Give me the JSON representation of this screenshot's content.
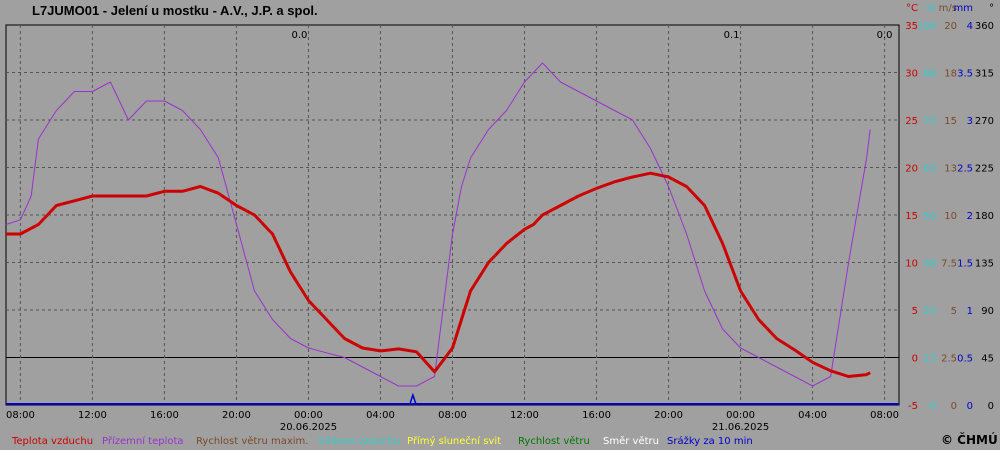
{
  "chart_data": {
    "type": "line",
    "title": "L7JUMO01 - Jelení u mostku - A.V., J.P. a spol.",
    "copyright": "© ČHMÚ",
    "x_ticks": [
      "08:00",
      "12:00",
      "16:00",
      "20:00",
      "00:00",
      "04:00",
      "08:00",
      "12:00",
      "16:00",
      "20:00",
      "00:00",
      "04:00",
      "08:00"
    ],
    "x_dates": [
      {
        "after_tick": 4,
        "label": "20.06.2025"
      },
      {
        "after_tick": 10,
        "label": "21.06.2025"
      }
    ],
    "x_range_hours": [
      -0.8,
      48.8
    ],
    "ylim": [
      -5,
      35
    ],
    "grid": true,
    "right_axes": [
      {
        "unit": "°C",
        "color": "#cc0000",
        "ticks": [
          "35",
          "30",
          "25",
          "20",
          "15",
          "10",
          "5",
          "0",
          "-5"
        ]
      },
      {
        "unit": "%",
        "color": "#33cccc",
        "ticks": [
          "100",
          "88",
          "75",
          "63",
          "50",
          "38",
          "25",
          "13",
          "0"
        ]
      },
      {
        "unit": "m/s",
        "color": "#7a4a2a",
        "ticks": [
          "20",
          "18",
          "15",
          "13",
          "10",
          "7.5",
          "5",
          "2.5",
          "0"
        ]
      },
      {
        "unit": "mm",
        "color": "#0000cc",
        "ticks": [
          "4",
          "3.5",
          "3",
          "2.5",
          "2",
          "1.5",
          "1",
          "0.5",
          "0"
        ]
      },
      {
        "unit": "°",
        "color": "#000000",
        "ticks": [
          "360",
          "315",
          "270",
          "225",
          "180",
          "135",
          "90",
          "45",
          "0"
        ]
      }
    ],
    "annotations": [
      {
        "x_hour": 15.5,
        "text": "0.0"
      },
      {
        "x_hour": 39.5,
        "text": "0.1"
      },
      {
        "x_hour": 48.0,
        "text": "0.0"
      }
    ],
    "series": [
      {
        "name": "Teplota vzduchu",
        "color": "#cc0000",
        "x": [
          -0.8,
          0,
          1,
          2,
          3,
          4,
          5,
          6,
          7,
          8,
          9,
          10,
          11,
          12,
          13,
          14,
          15,
          16,
          17,
          18,
          19,
          20,
          21,
          22,
          23,
          24,
          25,
          26,
          27,
          28,
          28.5,
          29,
          30,
          31,
          32,
          33,
          34,
          35,
          36,
          37,
          38,
          39,
          40,
          41,
          42,
          43,
          44,
          45,
          46,
          47,
          47.2
        ],
        "values": [
          13,
          13,
          14,
          16,
          16.5,
          17,
          17,
          17,
          17,
          17.5,
          17.5,
          18,
          17.3,
          16,
          15,
          13,
          9,
          6,
          4,
          2,
          1,
          0.7,
          0.9,
          0.6,
          -1.5,
          1,
          7,
          10,
          12,
          13.5,
          14,
          15,
          16,
          17,
          17.8,
          18.5,
          19,
          19.4,
          19,
          18,
          16,
          12,
          7,
          4,
          2,
          0.8,
          -0.5,
          -1.4,
          -2,
          -1.8,
          -1.6
        ]
      },
      {
        "name": "Přízemní teplota",
        "color": "#9933cc",
        "x": [
          -0.8,
          0,
          0.6,
          1,
          2,
          3,
          4,
          5,
          6,
          7,
          8,
          9,
          10,
          11,
          12,
          13,
          14,
          15,
          16,
          17,
          18,
          19,
          20,
          21,
          22,
          23,
          24,
          24.5,
          25,
          26,
          27,
          28,
          29,
          30,
          31,
          32,
          33,
          34,
          35,
          36,
          37,
          38,
          39,
          40,
          41,
          42,
          43,
          44,
          45,
          46,
          47,
          47.2
        ],
        "values": [
          14,
          14.5,
          17,
          23,
          26,
          28,
          28,
          29,
          25,
          27,
          27,
          26,
          24,
          21,
          14,
          7,
          4,
          2,
          1,
          0.5,
          0,
          -1,
          -2,
          -3,
          -3,
          -2,
          13,
          18,
          21,
          24,
          26,
          29,
          31,
          29,
          28,
          27,
          26,
          25,
          22,
          18,
          13,
          7,
          3,
          1,
          0,
          -1,
          -2,
          -3,
          -2,
          10,
          21,
          24
        ]
      }
    ],
    "legend": [
      {
        "label": "Teplota vzduchu",
        "color": "#cc0000"
      },
      {
        "label": "Přízemní teplota",
        "color": "#9933cc"
      },
      {
        "label": "Rychlost větru maxim.",
        "color": "#7a4a2a"
      },
      {
        "label": "Vlhkost vzduchu",
        "color": "#33cccc"
      },
      {
        "label": "Přímý sluneční svit",
        "color": "#ffff33"
      },
      {
        "label": "Rychlost větru",
        "color": "#007700"
      },
      {
        "label": "Směr větru",
        "color": "#ffffff"
      },
      {
        "label": "Srážky za 10 min",
        "color": "#0000cc"
      }
    ],
    "rain": [
      {
        "x_hour": 21.8,
        "mm": 0.1
      }
    ]
  }
}
